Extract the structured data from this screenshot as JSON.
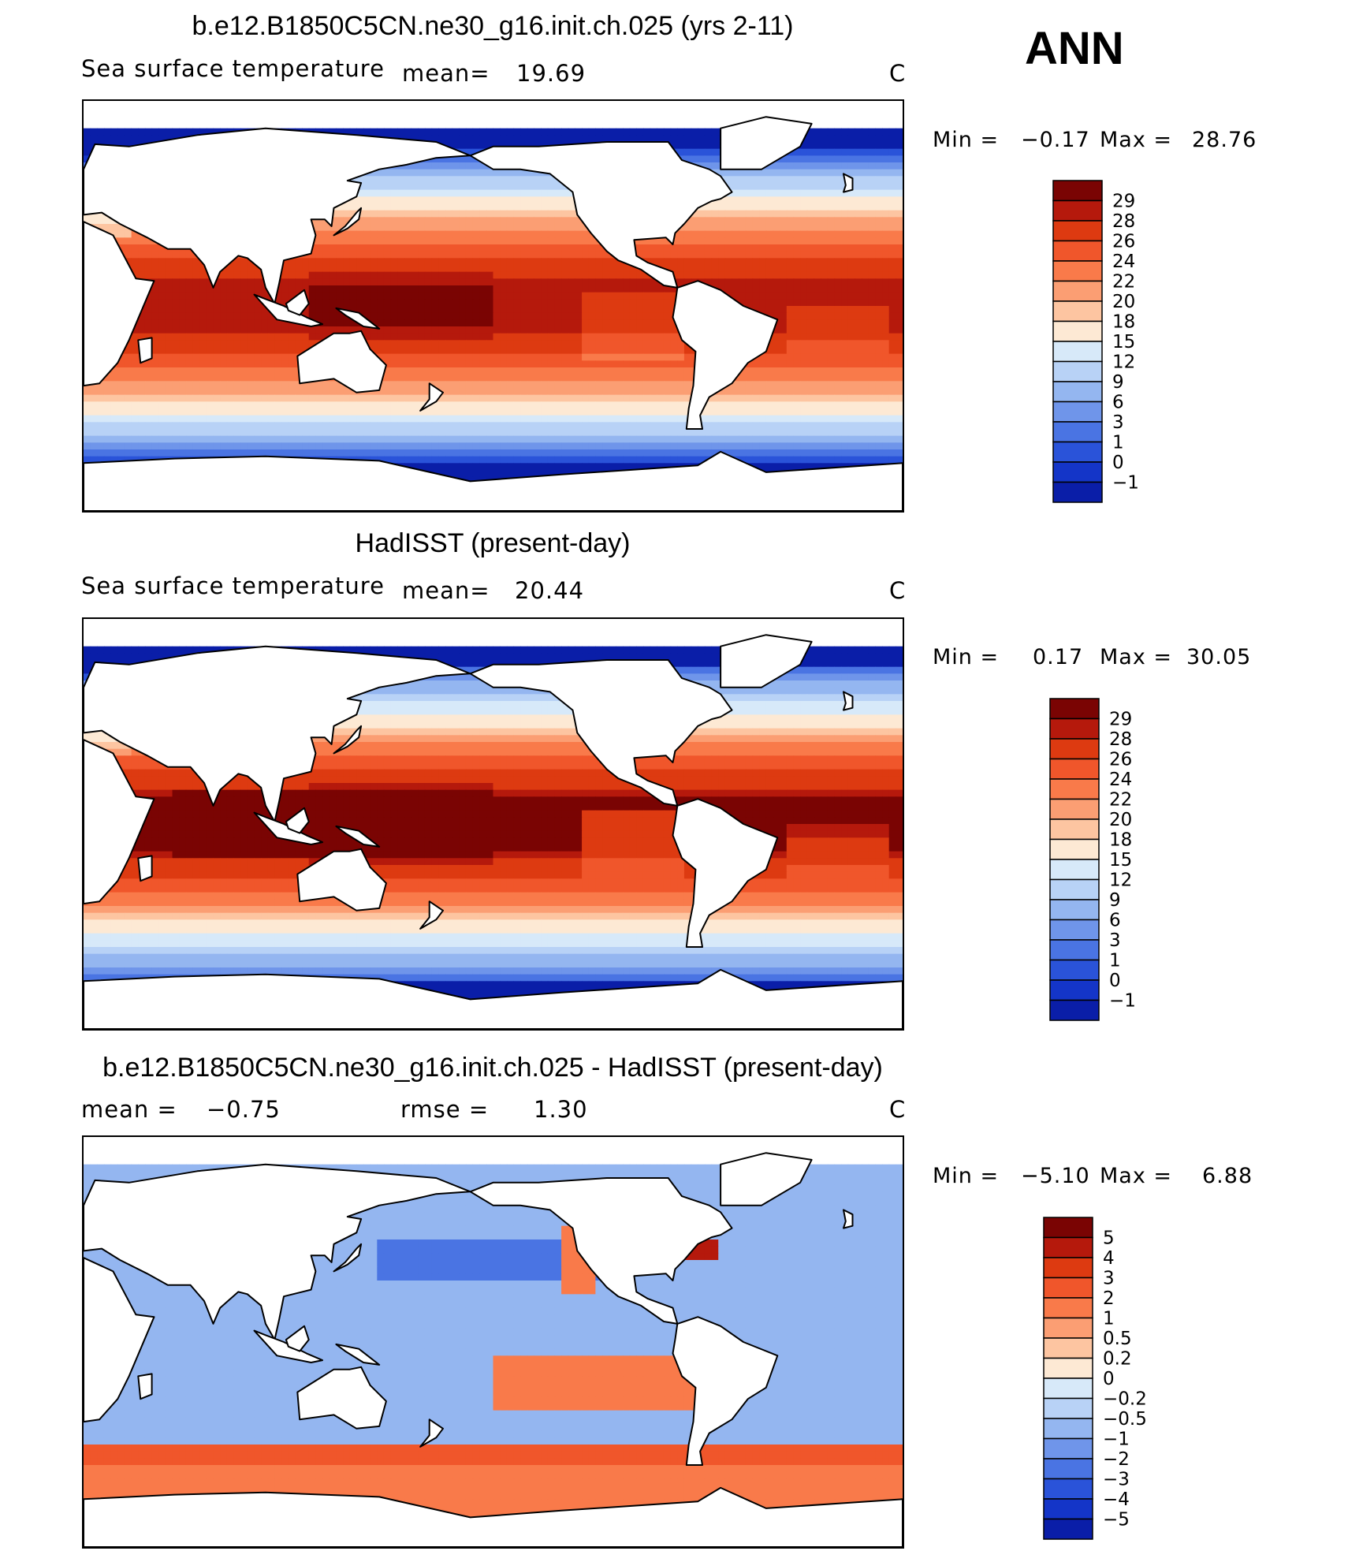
{
  "season": "ANN",
  "colors": {
    "warm": [
      "#7a0403",
      "#b5190c",
      "#dd3a11",
      "#f0562b",
      "#f97a4a",
      "#fb9e73",
      "#fdc5a1",
      "#fde9d4",
      "#d7e9f9",
      "#b8d2f6",
      "#94b6f0",
      "#6f95ea",
      "#4a74e3",
      "#2a53d9",
      "#1435c8",
      "#0a1ea8",
      "#050c83"
    ],
    "land": "#ffffff",
    "coast": "#000000"
  },
  "chart_data": [
    {
      "type": "heatmap",
      "title": "b.e12.B1850C5CN.ne30_g16.init.ch.025 (yrs 2-11)",
      "left_label": "Sea surface temperature",
      "stat_label": "mean=",
      "stat_value": "19.69",
      "units": "C",
      "min_label": "Min =",
      "min_value": "−0.17",
      "max_label": "Max =",
      "max_value": "28.76",
      "colorbar_levels": [
        "29",
        "28",
        "26",
        "24",
        "22",
        "20",
        "18",
        "15",
        "12",
        "9",
        "6",
        "3",
        "1",
        "0",
        "−1"
      ],
      "field": "sst_model"
    },
    {
      "type": "heatmap",
      "title": "HadISST (present-day)",
      "left_label": "Sea surface temperature",
      "stat_label": "mean=",
      "stat_value": "20.44",
      "units": "C",
      "min_label": "Min =",
      "min_value": "0.17",
      "max_label": "Max =",
      "max_value": "30.05",
      "colorbar_levels": [
        "29",
        "28",
        "26",
        "24",
        "22",
        "20",
        "18",
        "15",
        "12",
        "9",
        "6",
        "3",
        "1",
        "0",
        "−1"
      ],
      "field": "sst_obs"
    },
    {
      "type": "heatmap",
      "title": "b.e12.B1850C5CN.ne30_g16.init.ch.025 - HadISST (present-day)",
      "left_label": "mean =",
      "stat_value": "−0.75",
      "stat2_label": "rmse =",
      "stat2_value": "1.30",
      "units": "C",
      "min_label": "Min =",
      "min_value": "−5.10",
      "max_label": "Max =",
      "max_value": "6.88",
      "colorbar_levels": [
        "5",
        "4",
        "3",
        "2",
        "1",
        "0.5",
        "0.2",
        "0",
        "−0.2",
        "−0.5",
        "−1",
        "−2",
        "−3",
        "−4",
        "−5"
      ],
      "field": "sst_diff"
    }
  ]
}
